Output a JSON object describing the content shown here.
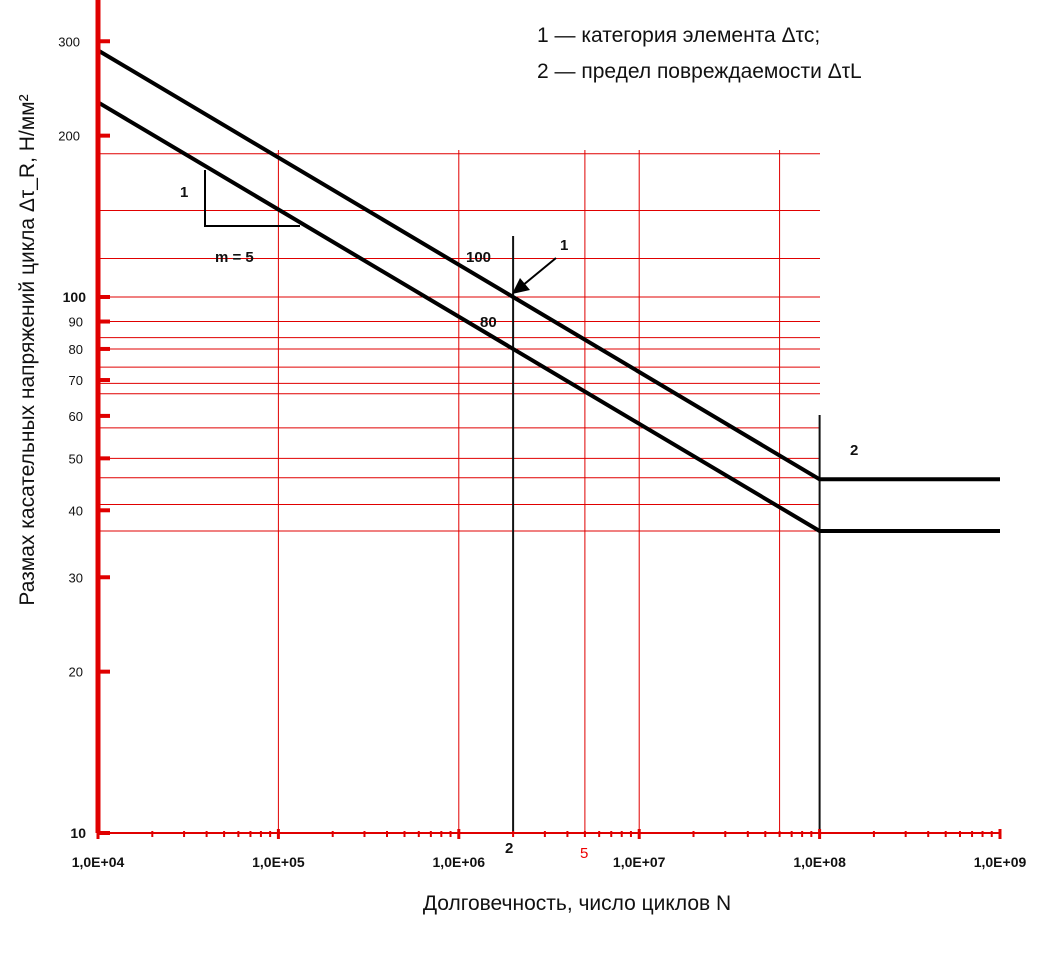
{
  "chart_data": {
    "type": "line",
    "title": "",
    "xlabel": "Долговечность, число циклов N",
    "ylabel": "Размах касательных напряжений цикла Δτ_R, Н/мм²",
    "x_scale": "log",
    "y_scale": "log",
    "xlim": [
      10000,
      1000000000
    ],
    "ylim": [
      10,
      350
    ],
    "grid": false,
    "x_ticks": [
      {
        "value": 10000,
        "label": "1,0E+04"
      },
      {
        "value": 100000,
        "label": "1,0E+05"
      },
      {
        "value": 1000000,
        "label": "1,0E+06"
      },
      {
        "value": 10000000,
        "label": "1,0E+07"
      },
      {
        "value": 100000000,
        "label": "1,0E+08"
      },
      {
        "value": 1000000000,
        "label": "1,0E+09"
      }
    ],
    "y_ticks_major": [
      {
        "value": 300,
        "label": "300"
      },
      {
        "value": 200,
        "label": "200"
      },
      {
        "value": 100,
        "label": "100"
      },
      {
        "value": 10,
        "label": "10"
      }
    ],
    "y_ticks_minor": [
      {
        "value": 90,
        "label": "90"
      },
      {
        "value": 80,
        "label": "80"
      },
      {
        "value": 70,
        "label": "70"
      },
      {
        "value": 60,
        "label": "60"
      },
      {
        "value": 50,
        "label": "50"
      },
      {
        "value": 40,
        "label": "40"
      },
      {
        "value": 30,
        "label": "30"
      },
      {
        "value": 20,
        "label": "20"
      }
    ],
    "series": [
      {
        "name": "100",
        "x": [
          10000,
          2000000,
          100000000,
          1000000000
        ],
        "y": [
          288.5,
          100,
          45.7,
          45.7
        ]
      },
      {
        "name": "80",
        "x": [
          10000,
          2000000,
          100000000,
          1000000000
        ],
        "y": [
          230.8,
          80,
          36.6,
          36.6
        ]
      }
    ],
    "reference_lines": {
      "vertical_black": [
        2000000,
        100000000
      ],
      "vertical_red": [
        100000,
        1000000,
        5000000,
        10000000,
        60000000
      ],
      "horizontal_red": [
        185,
        145,
        118,
        100,
        90,
        84,
        80,
        74,
        69,
        66,
        57,
        50,
        46,
        41,
        36.6
      ]
    },
    "annotations": {
      "slope_one": "1",
      "slope_m": "m = 5",
      "curve_label_upper": "100",
      "curve_label_lower": "80",
      "arrow_label": "1",
      "cutoff_label": "2",
      "bottom_label_2": "2",
      "bottom_label_5": "5"
    },
    "legend": [
      "1 — категория элемента Δτc;",
      "2 — предел повреждаемости ΔτL"
    ],
    "legend_position": "top-right",
    "colors": {
      "curves": "#000000",
      "helpers": "#e00000",
      "axis": "#e00000"
    }
  }
}
